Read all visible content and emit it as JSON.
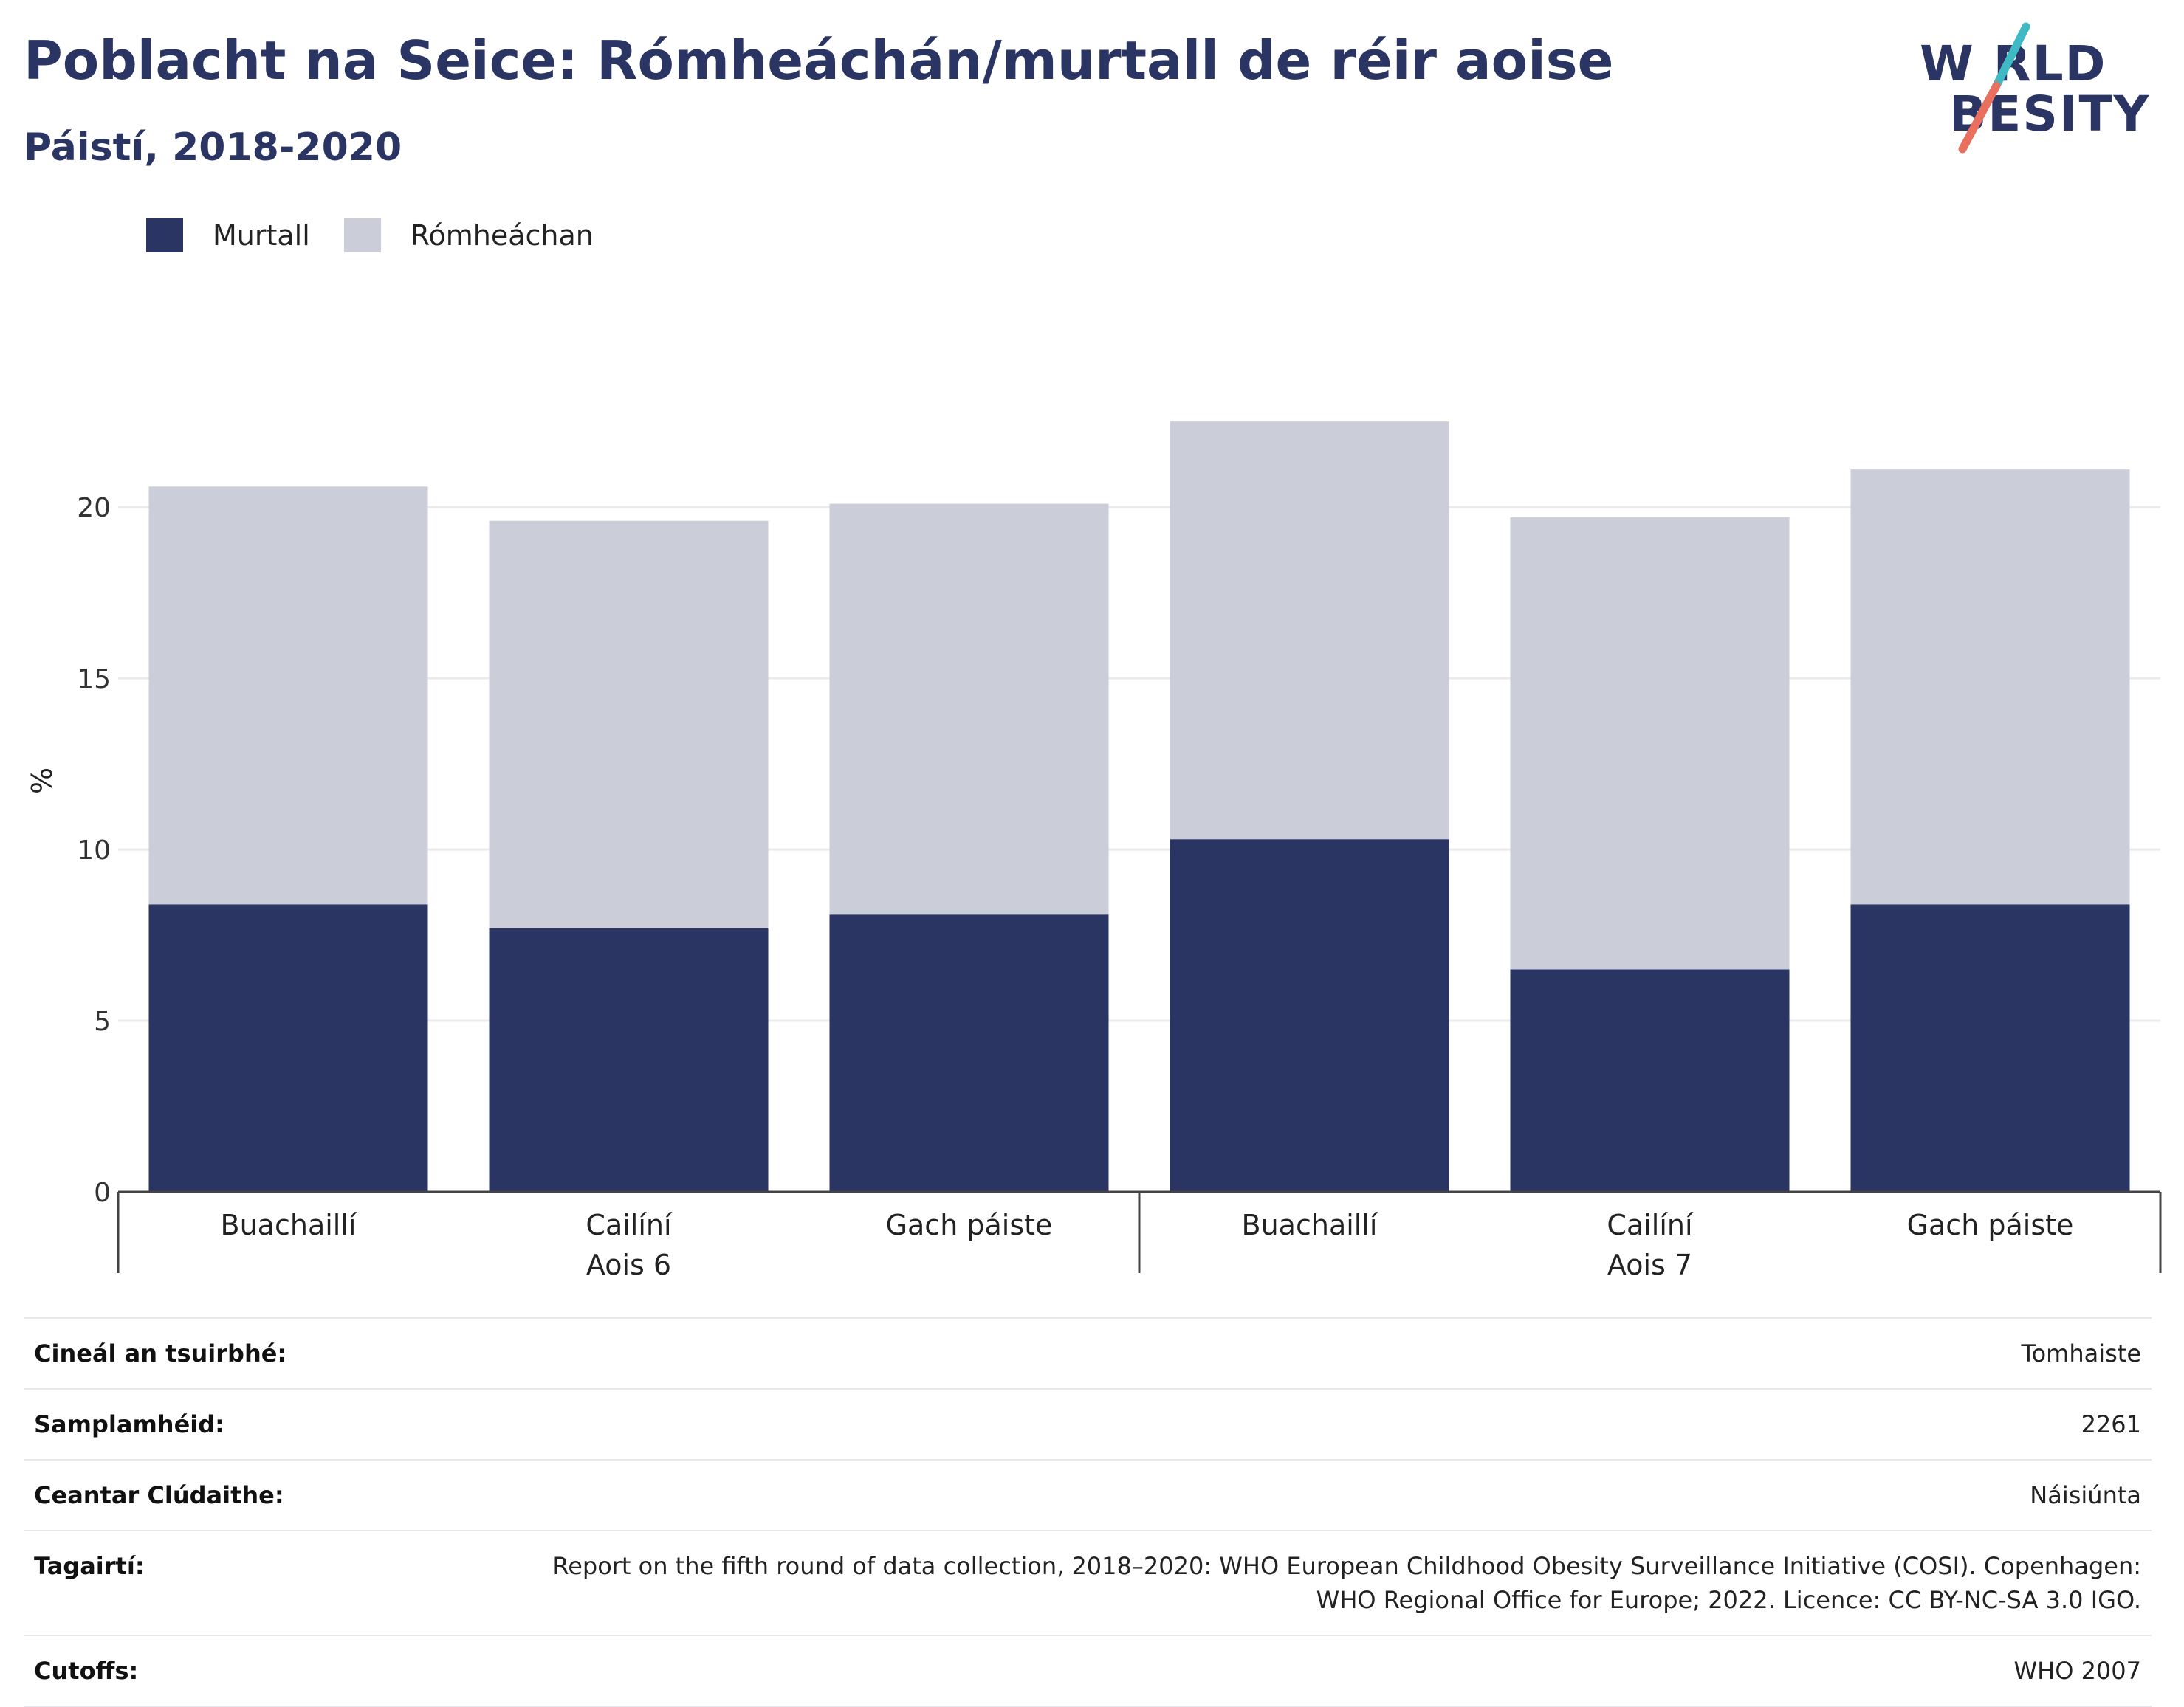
{
  "header": {
    "title": "Poblacht na Seice: Rómheáchán/murtall de réir aoise",
    "subtitle": "Páistí, 2018-2020"
  },
  "logo": {
    "line1": "W RLD",
    "line2": "BESITY",
    "colors": {
      "text": "#2a3564",
      "slash_top": "#3fb9c3",
      "slash_bottom": "#e9705e"
    }
  },
  "legend": [
    {
      "label": "Murtall",
      "color": "#2a3564"
    },
    {
      "label": "Rómheáchan",
      "color": "#cbcdd8"
    }
  ],
  "chart_data": {
    "type": "bar",
    "stacked": true,
    "ylabel": "%",
    "ylim": [
      0,
      23
    ],
    "yticks": [
      0,
      5,
      10,
      15,
      20
    ],
    "grid": true,
    "legend_position": "top-left",
    "groups": [
      {
        "label": "Aois 6",
        "categories": [
          "Buachaillí",
          "Cailíní",
          "Gach páiste"
        ]
      },
      {
        "label": "Aois 7",
        "categories": [
          "Buachaillí",
          "Cailíní",
          "Gach páiste"
        ]
      }
    ],
    "series": [
      {
        "name": "Murtall",
        "color": "#2a3564",
        "values": [
          8.4,
          7.7,
          8.1,
          10.3,
          6.5,
          8.4
        ]
      },
      {
        "name": "Rómheáchan",
        "color": "#cbcdd8",
        "values": [
          12.2,
          11.9,
          12.0,
          12.2,
          13.2,
          12.7
        ]
      }
    ]
  },
  "info": [
    {
      "label": "Cineál an tsuirbhé:",
      "value": "Tomhaiste"
    },
    {
      "label": "Samplamhéid:",
      "value": "2261"
    },
    {
      "label": "Ceantar Clúdaithe:",
      "value": "Náisiúnta"
    },
    {
      "label": "Tagairtí:",
      "value": "Report on the fifth round of data collection, 2018–2020: WHO European Childhood Obesity Surveillance Initiative (COSI). Copenhagen: WHO Regional Office for Europe; 2022. Licence: CC BY-NC-SA 3.0 IGO."
    },
    {
      "label": "Cutoffs:",
      "value": "WHO 2007"
    }
  ]
}
